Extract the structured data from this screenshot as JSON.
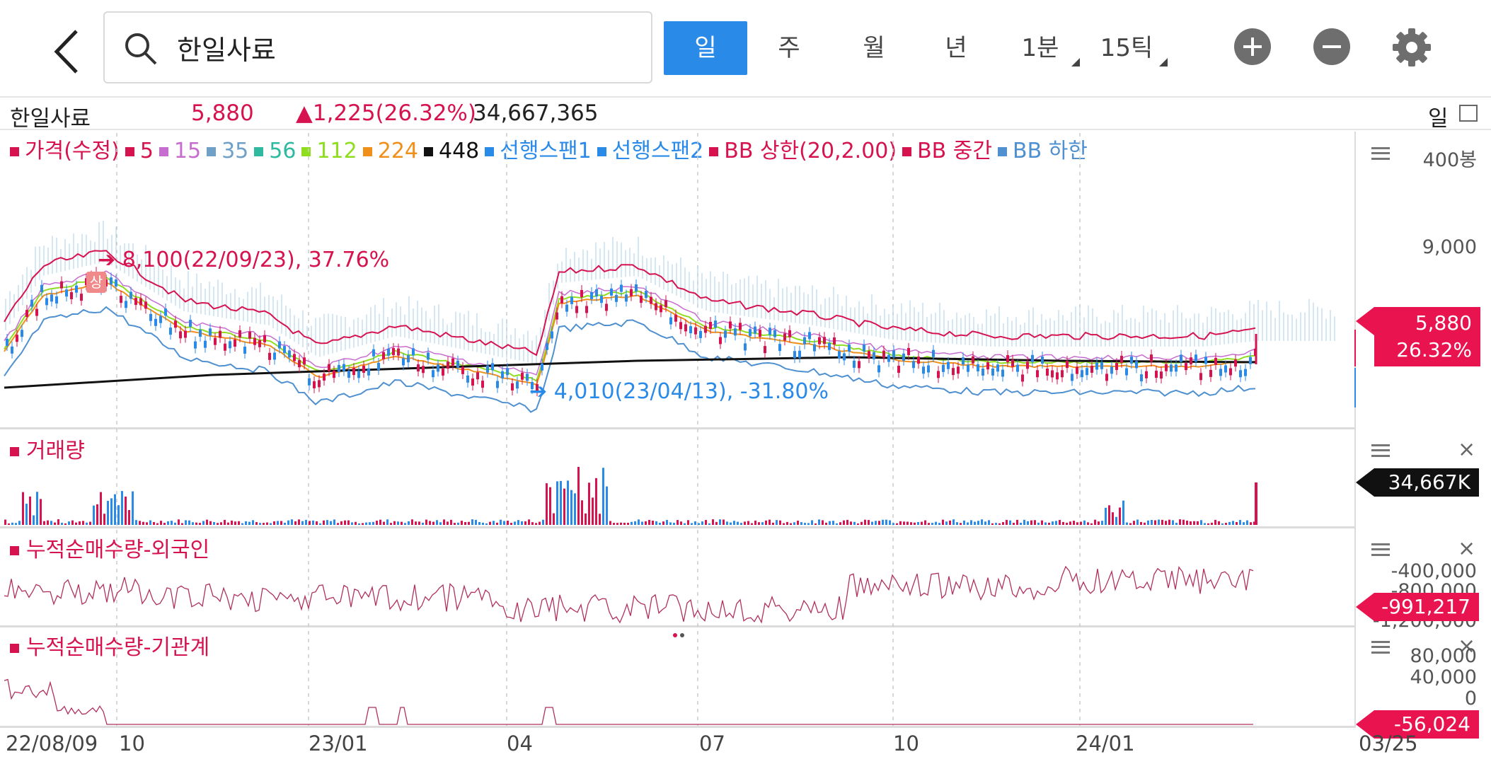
{
  "search": {
    "query": "한일사료"
  },
  "periods": [
    {
      "label": "일",
      "active": true
    },
    {
      "label": "주",
      "active": false
    },
    {
      "label": "월",
      "active": false
    },
    {
      "label": "년",
      "active": false
    },
    {
      "label": "1분",
      "active": false
    },
    {
      "label": "15틱",
      "active": false
    }
  ],
  "info": {
    "name": "한일사료",
    "price": "5,880",
    "change": "▲1,225(26.32%)",
    "volume": "34,667,365",
    "period_label": "일"
  },
  "legend": [
    {
      "label": "가격(수정)",
      "color": "#d6134f"
    },
    {
      "label": "5",
      "color": "#d6134f"
    },
    {
      "label": "15",
      "color": "#c86dd0"
    },
    {
      "label": "35",
      "color": "#6fa0c8"
    },
    {
      "label": "56",
      "color": "#2fb9a0"
    },
    {
      "label": "112",
      "color": "#8ede1f"
    },
    {
      "label": "224",
      "color": "#f0901a"
    },
    {
      "label": "448",
      "color": "#111111"
    },
    {
      "label": "선행스팬1",
      "color": "#2a8ae8"
    },
    {
      "label": "선행스팬2",
      "color": "#2a8ae8"
    },
    {
      "label": "BB 상한(20,2.00)",
      "color": "#d6134f"
    },
    {
      "label": "BB 중간",
      "color": "#d6134f"
    },
    {
      "label": "BB 하한",
      "color": "#4f90d0"
    }
  ],
  "price_panel": {
    "axis_labels": [
      "400봉",
      "9,000"
    ],
    "high_note": "8,100(22/09/23), 37.76%",
    "low_note": "4,010(23/04/13), -31.80%",
    "limit_badge": "상",
    "price_tag": "5,880",
    "pct_tag": "26.32%"
  },
  "volume_panel": {
    "title": "거래량",
    "tag": "34,667K"
  },
  "foreign_panel": {
    "title": "누적순매수량-외국인",
    "axis_labels": [
      "-400,000",
      "-800,000",
      "-1,200,000"
    ],
    "tag": "-991,217"
  },
  "inst_panel": {
    "title": "누적순매수량-기관계",
    "axis_labels": [
      "80,000",
      "40,000",
      "0"
    ],
    "tag": "-56,024"
  },
  "dates": [
    "22/08/09",
    "10",
    "23/01",
    "04",
    "07",
    "10",
    "24/01",
    "03/25"
  ],
  "colors": {
    "accent": "#2a8ae8",
    "up": "#d6134f",
    "down": "#2a8ae8"
  }
}
